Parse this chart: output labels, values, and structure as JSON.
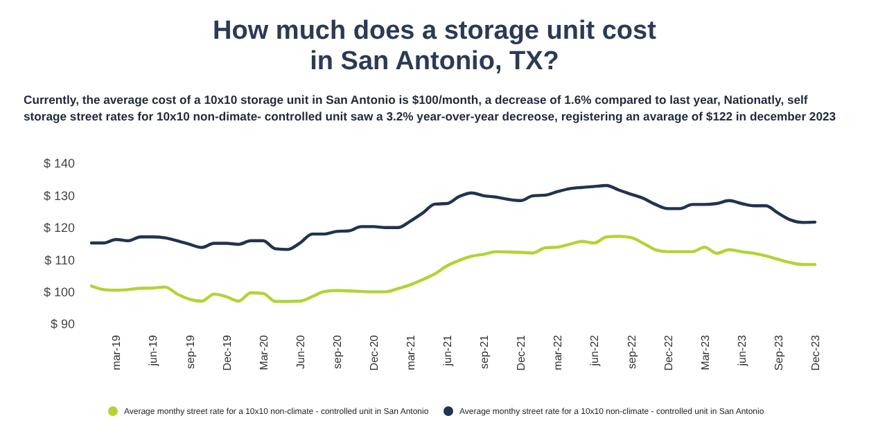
{
  "chart_data": {
    "type": "line",
    "title": "How much does a storage unit cost in San Antonio, TX?",
    "subtitle": "Currently, the average cost of a 10x10 storage unit in San Antonio is $100/month, a decrease of 1.6% compared to last year, Nationatly, self storage street rates for 10x10 non-dimate- controlled unit saw a 3.2% year-over-year decreose, registering an avarage of $122 in december 2023",
    "categories": [
      null,
      null,
      "mar-19",
      null,
      null,
      "jun-19",
      null,
      null,
      "sep-19",
      null,
      null,
      "Dec-19",
      null,
      null,
      "Mar-20",
      null,
      null,
      "Jun-20",
      null,
      null,
      "sep-20",
      null,
      null,
      "Dec-20",
      null,
      null,
      "mar-21",
      null,
      null,
      "jun-21",
      null,
      null,
      "sep-21",
      null,
      null,
      "Dec-21",
      null,
      null,
      "mar-22",
      null,
      null,
      "jun-22",
      null,
      null,
      "sep-22",
      null,
      null,
      "Dec-22",
      null,
      null,
      "Mar-23",
      null,
      null,
      "jun-23",
      null,
      null,
      "Sep-23",
      null,
      null,
      "Dec-23"
    ],
    "series": [
      {
        "name": "Average monthy street rate for a 10x10 non-climate - controlled unit in San Antonio",
        "color": "#b3d335",
        "values": [
          101.8,
          100.7,
          100.5,
          100.7,
          101.1,
          101.2,
          101.5,
          99.3,
          97.7,
          97.1,
          99.3,
          98.5,
          97.1,
          99.7,
          99.5,
          97,
          97,
          97.1,
          98.5,
          100.1,
          100.4,
          100.3,
          100.1,
          100,
          100,
          101,
          102.2,
          103.8,
          105.6,
          108.1,
          109.8,
          111.1,
          111.7,
          112.5,
          112.4,
          112.3,
          112.1,
          113.7,
          113.9,
          114.8,
          115.7,
          115.2,
          117.1,
          117.3,
          116.9,
          115.1,
          113.1,
          112.5,
          112.5,
          112.5,
          113.9,
          112,
          113.1,
          112.5,
          112,
          111.2,
          110.1,
          109.1,
          108.5,
          108.5
        ]
      },
      {
        "name": "Average monthy street rate for a 10x10 non-climate - controlled unit in San Antonio",
        "color": "#1f3450",
        "values": [
          115.2,
          115.2,
          116.3,
          115.9,
          117.1,
          117.1,
          116.8,
          115.9,
          114.8,
          113.8,
          115.1,
          115.1,
          114.8,
          115.9,
          115.9,
          113.4,
          113.2,
          115.2,
          118,
          118,
          118.8,
          119,
          120.3,
          120.3,
          120,
          120,
          122,
          124.5,
          127.3,
          127.5,
          129.7,
          130.8,
          129.9,
          129.5,
          128.8,
          128.4,
          129.9,
          130.1,
          131.2,
          132.1,
          132.5,
          132.8,
          133.1,
          131.7,
          130.4,
          129.1,
          127.2,
          125.9,
          125.9,
          127.2,
          127.2,
          127.5,
          128.4,
          127.5,
          126.8,
          126.8,
          124.5,
          122.4,
          121.6,
          121.7
        ]
      }
    ],
    "ylim": [
      90,
      140
    ],
    "yticks": [
      {
        "value": 90,
        "label": "$ 90"
      },
      {
        "value": 100,
        "label": "$ 100"
      },
      {
        "value": 110,
        "label": "$ 110"
      },
      {
        "value": 120,
        "label": "$ 120"
      },
      {
        "value": 130,
        "label": "$ 130"
      },
      {
        "value": 140,
        "label": "$ 140"
      }
    ],
    "grid": false,
    "legend": "bottom",
    "marker": "none",
    "line_style": "solid"
  }
}
